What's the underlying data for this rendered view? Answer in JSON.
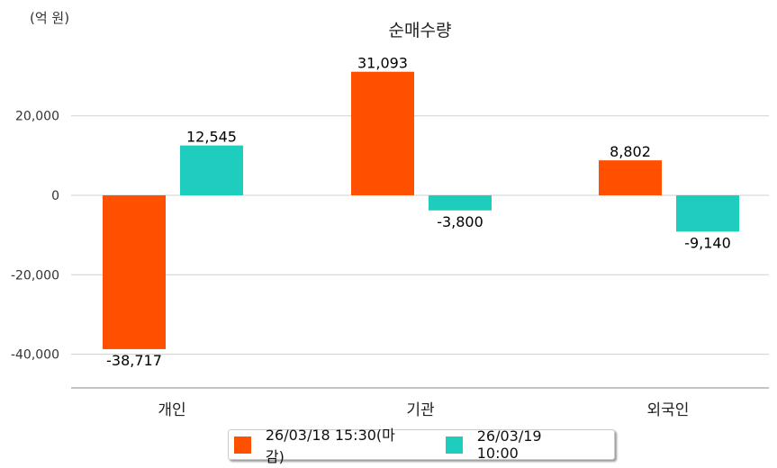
{
  "chart_data": {
    "type": "bar",
    "title": "순매수량",
    "unit_label": "(억 원)",
    "categories": [
      "개인",
      "기관",
      "외국인"
    ],
    "series": [
      {
        "name": "26/03/18 15:30(마감)",
        "color": "#FF5000",
        "values": [
          -38717,
          31093,
          8802
        ],
        "labels": [
          "-38,717",
          "31,093",
          "8,802"
        ]
      },
      {
        "name": "26/03/19 10:00",
        "color": "#1ECDBE",
        "values": [
          12545,
          -3800,
          -9140
        ],
        "labels": [
          "12,545",
          "-3,800",
          "-9,140"
        ]
      }
    ],
    "yticks": [
      20000,
      0,
      -20000,
      -40000
    ],
    "ytick_labels": [
      "20,000",
      "0",
      "-20,000",
      "-40,000"
    ],
    "ylim": [
      -48500,
      40000
    ],
    "grid": true,
    "legend_position": "bottom"
  }
}
